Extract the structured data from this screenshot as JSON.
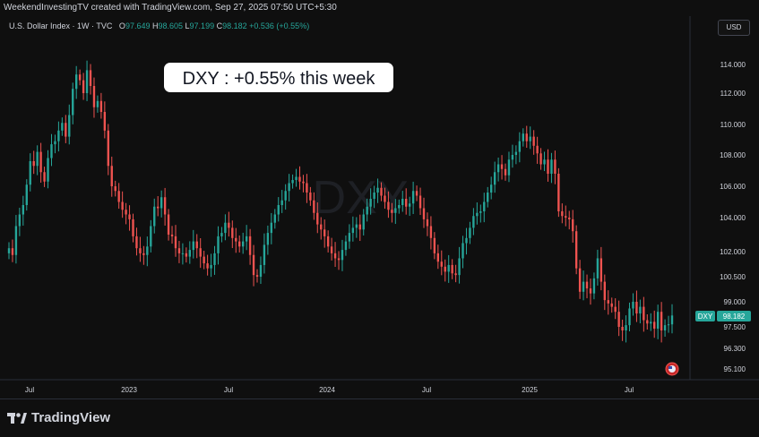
{
  "header": {
    "credit": "WeekendInvestingTV created with TradingView.com, Sep 27, 2025 07:50 UTC+5:30"
  },
  "legend": {
    "symbol": "U.S. Dollar Index · 1W · TVC",
    "o_label": "O",
    "o_val": "97.649",
    "h_label": "H",
    "h_val": "98.605",
    "l_label": "L",
    "l_val": "97.199",
    "c_label": "C",
    "c_val": "98.182",
    "change": "+0.536 (+0.55%)"
  },
  "toolbar": {
    "currency": "USD"
  },
  "annotation": "DXY : +0.55% this week",
  "watermark": "DXY",
  "price_tag": {
    "symbol": "DXY",
    "value": "98.182"
  },
  "footer": {
    "brand": "TradingView"
  },
  "colors": {
    "up": "#26a69a",
    "down": "#ef5350",
    "bg": "#0f0f0f",
    "axis_text": "#d1d4dc"
  },
  "chart_data": {
    "type": "candlestick",
    "title": "U.S. Dollar Index",
    "interval": "1W",
    "y_ticks": [
      "114.000",
      "112.000",
      "110.000",
      "108.000",
      "106.000",
      "104.000",
      "102.000",
      "100.500",
      "99.000",
      "97.500",
      "96.300",
      "95.100"
    ],
    "x_ticks": [
      "Jul",
      "2023",
      "Jul",
      "2024",
      "Jul",
      "2025",
      "Jul"
    ],
    "last_close": 98.182,
    "close_series": [
      102.2,
      101.8,
      103.5,
      104.2,
      104.8,
      106.1,
      107.6,
      107.3,
      108.2,
      106.9,
      106.3,
      107.8,
      108.7,
      108.9,
      109.6,
      110.1,
      109.2,
      110.6,
      112.3,
      113.3,
      112.9,
      112.0,
      113.6,
      112.5,
      111.1,
      111.5,
      110.8,
      109.6,
      107.3,
      106.0,
      105.7,
      105.0,
      104.5,
      104.2,
      103.9,
      102.9,
      102.2,
      101.9,
      101.8,
      102.3,
      103.5,
      104.7,
      104.6,
      105.3,
      104.2,
      103.0,
      102.9,
      102.2,
      101.9,
      101.9,
      101.7,
      102.1,
      102.6,
      102.2,
      101.7,
      101.3,
      101.0,
      101.2,
      101.9,
      102.9,
      103.1,
      103.7,
      103.4,
      102.8,
      102.6,
      102.3,
      102.6,
      102.9,
      101.8,
      100.6,
      100.5,
      101.2,
      102.4,
      103.1,
      103.7,
      104.2,
      104.8,
      105.1,
      105.7,
      106.2,
      106.4,
      106.6,
      106.3,
      106.2,
      105.6,
      105.1,
      104.3,
      103.6,
      103.3,
      102.9,
      102.3,
      101.9,
      101.6,
      101.5,
      102.1,
      102.6,
      103.1,
      103.4,
      103.6,
      103.3,
      104.2,
      104.7,
      105.2,
      105.6,
      105.9,
      105.4,
      105.0,
      104.5,
      104.3,
      104.6,
      104.8,
      105.2,
      104.7,
      104.9,
      105.7,
      105.4,
      104.6,
      103.9,
      103.5,
      102.8,
      101.9,
      101.4,
      101.1,
      100.8,
      101.2,
      100.7,
      100.6,
      101.6,
      102.5,
      102.8,
      103.4,
      104.1,
      104.3,
      104.4,
      105.0,
      105.6,
      106.1,
      106.9,
      107.4,
      107.1,
      106.7,
      107.7,
      108.0,
      108.2,
      108.9,
      109.4,
      108.9,
      109.2,
      108.6,
      108.1,
      107.4,
      107.7,
      106.8,
      107.7,
      106.8,
      104.4,
      104.1,
      104.0,
      103.9,
      103.2,
      101.0,
      99.6,
      100.2,
      99.8,
      99.5,
      100.4,
      101.6,
      100.2,
      99.1,
      98.9,
      98.7,
      98.4,
      97.5,
      97.3,
      97.6,
      98.6,
      99.0,
      98.3,
      98.7,
      97.9,
      97.7,
      97.8,
      97.4,
      98.4,
      97.3,
      97.6,
      97.65,
      98.18
    ]
  }
}
